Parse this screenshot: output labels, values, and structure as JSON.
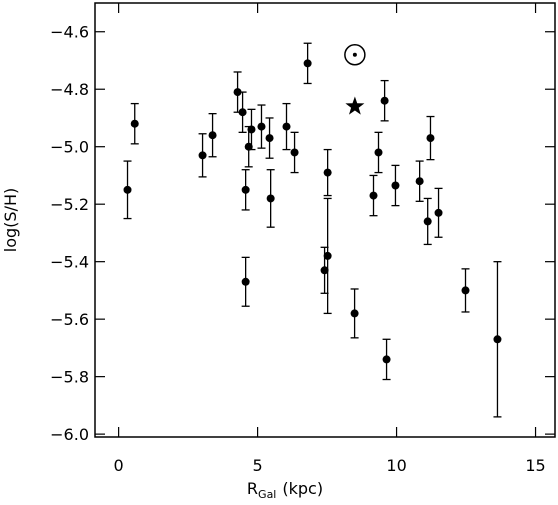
{
  "chart_data": {
    "type": "scatter",
    "xlabel": "R",
    "xlabel_sub": "Gal",
    "xlabel_unit": "(kpc)",
    "ylabel": "log(S/H)",
    "x": [
      0.32,
      0.58,
      3.02,
      3.38,
      4.28,
      4.46,
      4.57,
      4.57,
      4.68,
      4.78,
      5.14,
      5.43,
      5.47,
      6.04,
      6.33,
      6.8,
      7.41,
      7.52,
      7.52,
      8.49,
      9.17,
      9.35,
      9.57,
      9.64,
      9.96,
      10.83,
      11.12,
      11.22,
      11.51,
      12.48,
      13.63
    ],
    "values": [
      -5.15,
      -4.92,
      -5.03,
      -4.96,
      -4.81,
      -4.88,
      -5.15,
      -5.47,
      -5.0,
      -4.94,
      -4.93,
      -4.97,
      -5.18,
      -4.93,
      -5.02,
      -4.71,
      -5.43,
      -5.38,
      -5.09,
      -5.58,
      -5.17,
      -5.02,
      -4.84,
      -5.74,
      -5.135,
      -5.12,
      -5.26,
      -4.97,
      -5.23,
      -5.5,
      -5.67
    ],
    "errors": [
      0.1,
      0.07,
      0.075,
      0.075,
      0.07,
      0.07,
      0.07,
      0.085,
      0.07,
      0.07,
      0.075,
      0.07,
      0.1,
      0.08,
      0.07,
      0.07,
      0.08,
      0.2,
      0.08,
      0.085,
      0.07,
      0.07,
      0.07,
      0.07,
      0.07,
      0.07,
      0.08,
      0.075,
      0.085,
      0.075,
      0.27
    ],
    "color": "#000000",
    "markers": [
      {
        "symbol": "sun",
        "x": 8.5,
        "y": -4.68
      },
      {
        "symbol": "star",
        "x": 8.5,
        "y": -4.86
      }
    ],
    "xlim": [
      -0.85,
      15.7
    ],
    "ylim": [
      -6.01,
      -4.5
    ],
    "xticks": [
      0,
      5,
      10,
      15
    ],
    "yticks": [
      {
        "value": -4.6,
        "label": "−4.6"
      },
      {
        "value": -4.8,
        "label": "−4.8"
      },
      {
        "value": -5.0,
        "label": "−5.0"
      },
      {
        "value": -5.2,
        "label": "−5.2"
      },
      {
        "value": -5.4,
        "label": "−5.4"
      },
      {
        "value": -5.6,
        "label": "−5.6"
      },
      {
        "value": -5.8,
        "label": "−5.8"
      },
      {
        "value": -6.0,
        "label": "−6.0"
      }
    ]
  }
}
